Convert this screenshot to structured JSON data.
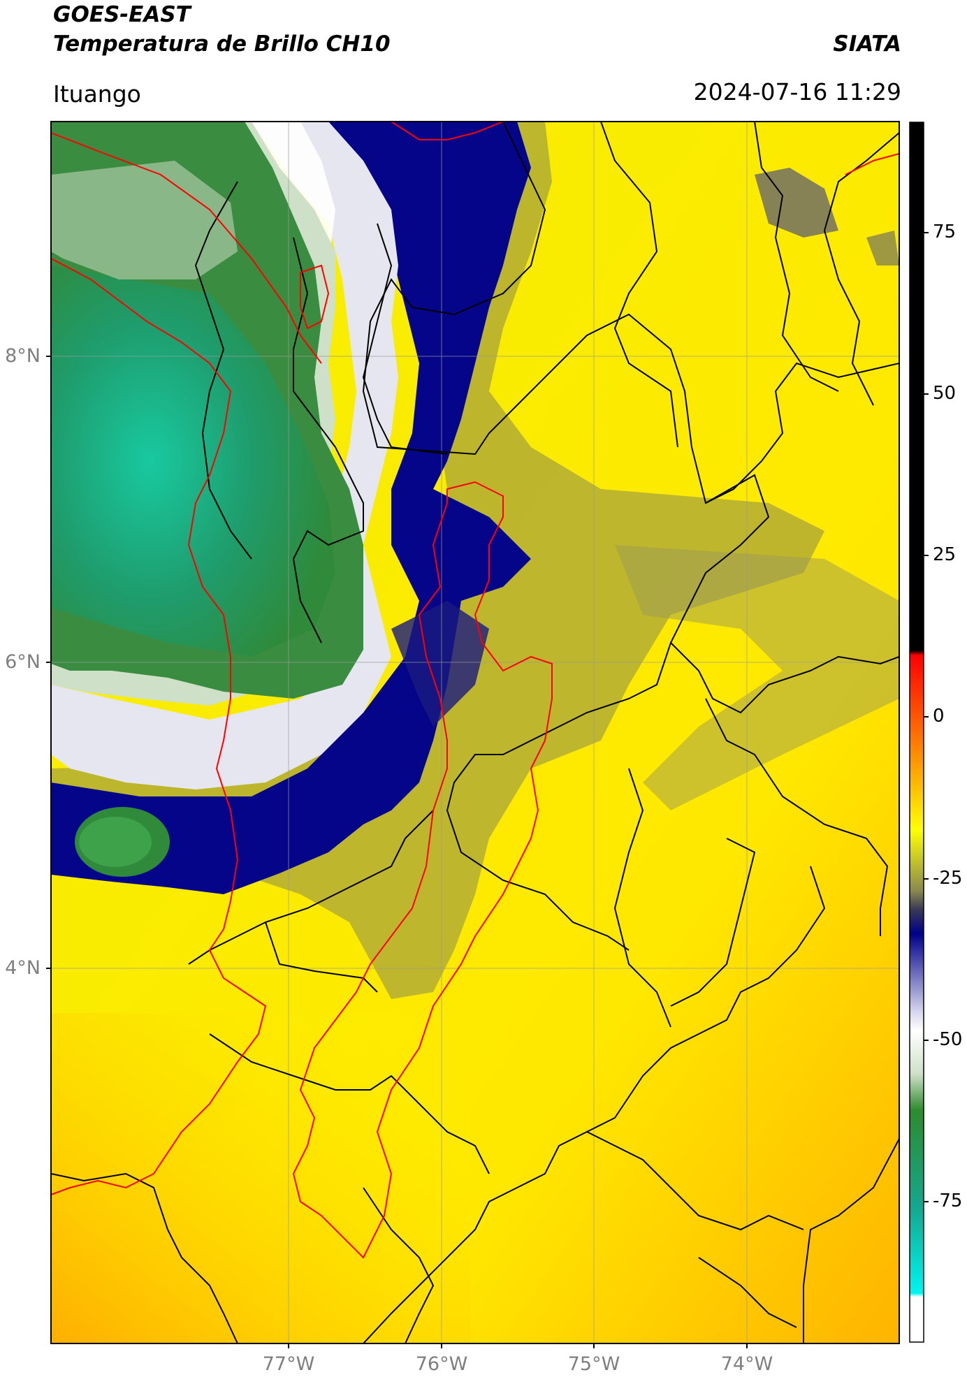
{
  "header": {
    "satellite": "GOES-EAST",
    "product": "Temperatura de Brillo CH10",
    "organization": "SIATA",
    "region": "Ituango",
    "timestamp": "2024-07-16 11:29"
  },
  "map": {
    "lat_labels": [
      {
        "text": "8°N",
        "lat": 8
      },
      {
        "text": "6°N",
        "lat": 6
      },
      {
        "text": "4°N",
        "lat": 4
      }
    ],
    "lon_labels": [
      {
        "text": "77°W",
        "lon": -77
      },
      {
        "text": "76°W",
        "lon": -76
      },
      {
        "text": "75°W",
        "lon": -75
      },
      {
        "text": "74°W",
        "lon": -74
      }
    ],
    "extent": {
      "lon_min": -78.55,
      "lon_max": -73.0,
      "lat_min": 1.6,
      "lat_max": 9.55
    },
    "gridlines": true
  },
  "colorbar": {
    "ticks": [
      {
        "label": "75",
        "value": 75
      },
      {
        "label": "50",
        "value": 50
      },
      {
        "label": "25",
        "value": 25
      },
      {
        "label": "0",
        "value": 0
      },
      {
        "label": "-25",
        "value": -25
      },
      {
        "label": "-50",
        "value": -50
      },
      {
        "label": "-75",
        "value": -75
      }
    ],
    "range": [
      -90,
      90
    ],
    "colors": {
      "warm_top": "#000000",
      "red": "#ff0000",
      "orange": "#ff8c00",
      "yellow": "#ffff00",
      "olive": "#8c8c4a",
      "navy": "#00007f",
      "white": "#ffffff",
      "green": "#2e8b2e",
      "teal": "#11c9a0",
      "cyan": "#00f5f0"
    }
  }
}
